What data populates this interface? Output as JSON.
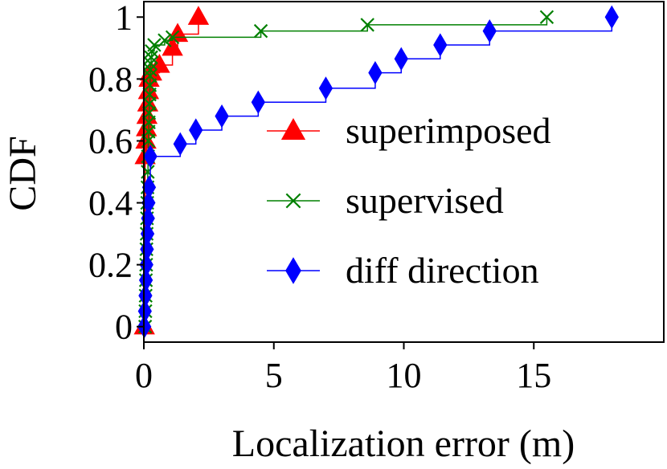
{
  "chart_data": {
    "type": "line",
    "title": "",
    "xlabel": "Localization error (m)",
    "ylabel": "CDF",
    "xlim": [
      0,
      20
    ],
    "ylim": [
      -0.05,
      1.05
    ],
    "x_ticks": [
      0,
      5,
      10,
      15
    ],
    "x_tick_labels": [
      "0",
      "5",
      "10",
      "15"
    ],
    "y_ticks": [
      0,
      0.2,
      0.4,
      0.6,
      0.8,
      1
    ],
    "y_tick_labels": [
      "0",
      "0.2",
      "0.4",
      "0.6",
      "0.8",
      "1"
    ],
    "grid": false,
    "legend_position": "center-right",
    "series": [
      {
        "name": "superimposed",
        "color": "#ff0000",
        "marker": "triangle",
        "step": true,
        "x": [
          0.02,
          0.05,
          0.08,
          0.1,
          0.12,
          0.15,
          0.18,
          0.2,
          0.25,
          0.3,
          0.6,
          1.1,
          1.3,
          2.1
        ],
        "y": [
          0.0,
          0.55,
          0.6,
          0.64,
          0.68,
          0.72,
          0.76,
          0.8,
          0.82,
          0.82,
          0.845,
          0.9,
          0.945,
          1.0
        ]
      },
      {
        "name": "supervised",
        "color": "#008000",
        "marker": "x",
        "step": true,
        "x": [
          0.05,
          0.06,
          0.07,
          0.08,
          0.09,
          0.1,
          0.11,
          0.12,
          0.13,
          0.14,
          0.15,
          0.16,
          0.17,
          0.18,
          0.19,
          0.2,
          0.21,
          0.22,
          0.23,
          0.24,
          0.25,
          0.26,
          0.28,
          0.3,
          0.4,
          0.8,
          1.1,
          4.5,
          8.6,
          15.5
        ],
        "y": [
          0.0,
          0.05,
          0.1,
          0.15,
          0.2,
          0.25,
          0.3,
          0.35,
          0.4,
          0.45,
          0.5,
          0.55,
          0.6,
          0.63,
          0.66,
          0.69,
          0.72,
          0.75,
          0.78,
          0.81,
          0.83,
          0.85,
          0.87,
          0.89,
          0.91,
          0.925,
          0.935,
          0.955,
          0.975,
          1.0
        ]
      },
      {
        "name": "diff direction",
        "color": "#0000ff",
        "marker": "diamond",
        "step": true,
        "x": [
          0.02,
          0.04,
          0.06,
          0.08,
          0.1,
          0.12,
          0.14,
          0.16,
          0.18,
          0.2,
          0.25,
          1.4,
          2.0,
          3.0,
          4.4,
          7.0,
          8.9,
          9.9,
          11.4,
          13.3,
          18.0
        ],
        "y": [
          0.0,
          0.05,
          0.1,
          0.15,
          0.2,
          0.25,
          0.3,
          0.35,
          0.4,
          0.45,
          0.55,
          0.59,
          0.635,
          0.68,
          0.725,
          0.77,
          0.82,
          0.865,
          0.91,
          0.955,
          1.0
        ]
      }
    ]
  }
}
